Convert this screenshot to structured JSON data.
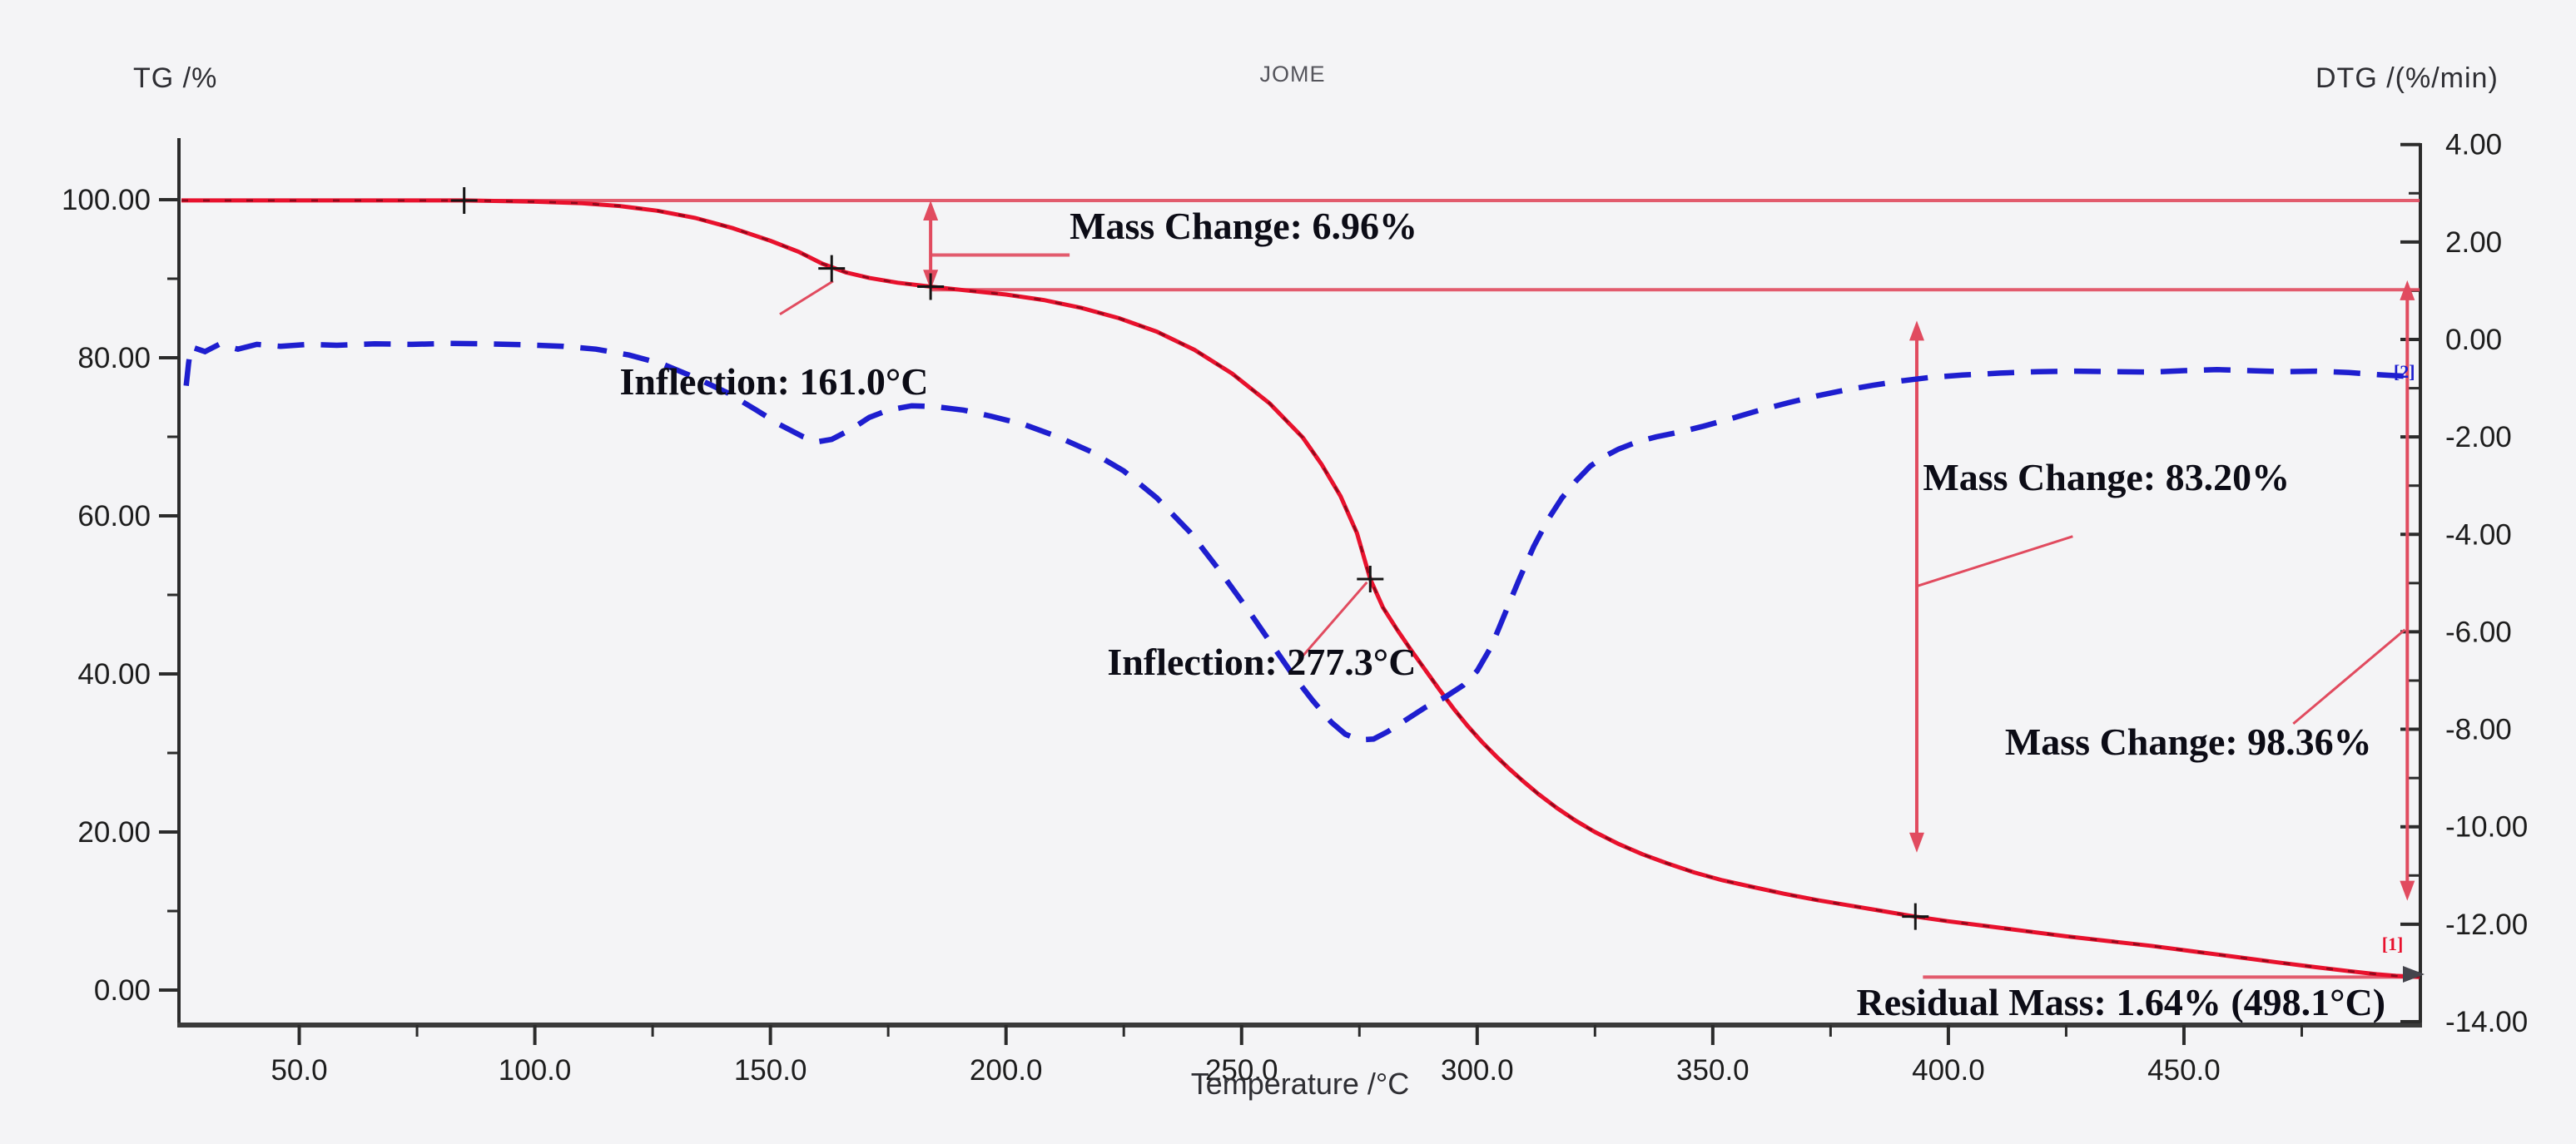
{
  "header": {
    "left_axis_label": "TG /%",
    "title": "JOME",
    "right_axis_label": "DTG /(%/min)"
  },
  "x_axis": {
    "label": "Temperature /°C",
    "min": 25,
    "max": 500,
    "major_tick_values": [
      50,
      100,
      150,
      200,
      250,
      300,
      350,
      400,
      450
    ],
    "major_tick_labels": [
      "50.0",
      "100.0",
      "150.0",
      "200.0",
      "250.0",
      "300.0",
      "350.0",
      "400.0",
      "450.0"
    ],
    "minor_tick_values": [
      75,
      125,
      175,
      225,
      275,
      325,
      375,
      425,
      475
    ]
  },
  "y_left_axis": {
    "label": "TG /%",
    "min": 0,
    "max": 100,
    "major_tick_values": [
      100,
      80,
      60,
      40,
      20,
      0
    ],
    "major_tick_labels": [
      "100.00",
      "80.00",
      "60.00",
      "40.00",
      "20.00",
      "0.00"
    ],
    "minor_tick_values": [
      90,
      70,
      50,
      30,
      10
    ]
  },
  "y_right_axis": {
    "label": "DTG /(%/min)",
    "min": -14,
    "max": 4,
    "major_tick_values": [
      4,
      2,
      0,
      -2,
      -4,
      -6,
      -8,
      -10,
      -12,
      -14
    ],
    "major_tick_labels": [
      "4.00",
      "2.00",
      "0.00",
      "-2.00",
      "-4.00",
      "-6.00",
      "-8.00",
      "-10.00",
      "-12.00",
      "-14.00"
    ],
    "minor_tick_values": [
      3,
      1,
      -1,
      -3,
      -5,
      -7,
      -9,
      -11,
      -13
    ]
  },
  "chart_data": {
    "type": "line",
    "title": "JOME",
    "xlabel": "Temperature /°C",
    "x_range": [
      25,
      500
    ],
    "y_left_range": [
      0,
      100
    ],
    "y_right_range": [
      -14,
      4
    ],
    "grid": false,
    "legend": "none",
    "series": [
      {
        "name": "TG",
        "axis": "left",
        "units": "%",
        "color": "#e8112d",
        "style": "solid",
        "points": [
          [
            25,
            99.9
          ],
          [
            45,
            99.9
          ],
          [
            65,
            99.9
          ],
          [
            85,
            99.9
          ],
          [
            100,
            99.75
          ],
          [
            110,
            99.55
          ],
          [
            118,
            99.2
          ],
          [
            126,
            98.6
          ],
          [
            134,
            97.7
          ],
          [
            142,
            96.4
          ],
          [
            150,
            94.8
          ],
          [
            156,
            93.4
          ],
          [
            161,
            91.9
          ],
          [
            166,
            90.8
          ],
          [
            171,
            90.1
          ],
          [
            177,
            89.5
          ],
          [
            184,
            89.0
          ],
          [
            192,
            88.5
          ],
          [
            200,
            88.0
          ],
          [
            208,
            87.3
          ],
          [
            216,
            86.3
          ],
          [
            224,
            85.0
          ],
          [
            232,
            83.3
          ],
          [
            240,
            81.0
          ],
          [
            248,
            78.0
          ],
          [
            256,
            74.2
          ],
          [
            263,
            69.9
          ],
          [
            267,
            66.5
          ],
          [
            271,
            62.5
          ],
          [
            274.5,
            57.8
          ],
          [
            277.3,
            52.0
          ],
          [
            280,
            48.4
          ],
          [
            283,
            45.6
          ],
          [
            286,
            43.0
          ],
          [
            289,
            40.5
          ],
          [
            292,
            38.0
          ],
          [
            295,
            35.6
          ],
          [
            298,
            33.4
          ],
          [
            301,
            31.4
          ],
          [
            304,
            29.6
          ],
          [
            307,
            27.9
          ],
          [
            310,
            26.3
          ],
          [
            313,
            24.8
          ],
          [
            317,
            23.0
          ],
          [
            321,
            21.4
          ],
          [
            325,
            20.0
          ],
          [
            330,
            18.5
          ],
          [
            335,
            17.2
          ],
          [
            340,
            16.1
          ],
          [
            346,
            14.9
          ],
          [
            352,
            13.9
          ],
          [
            358,
            13.1
          ],
          [
            365,
            12.2
          ],
          [
            372,
            11.4
          ],
          [
            379,
            10.7
          ],
          [
            386,
            10.0
          ],
          [
            393,
            9.3
          ],
          [
            400,
            8.7
          ],
          [
            408,
            8.1
          ],
          [
            416,
            7.5
          ],
          [
            425,
            6.8
          ],
          [
            434,
            6.2
          ],
          [
            443,
            5.6
          ],
          [
            452,
            4.9
          ],
          [
            461,
            4.2
          ],
          [
            470,
            3.5
          ],
          [
            478,
            2.9
          ],
          [
            485,
            2.4
          ],
          [
            491,
            2.0
          ],
          [
            495,
            1.8
          ],
          [
            498.1,
            1.7
          ],
          [
            500,
            1.65
          ]
        ]
      },
      {
        "name": "DTG",
        "axis": "right",
        "units": "%/min",
        "color": "#1e1ecf",
        "style": "dashed",
        "points": [
          [
            26,
            -0.95
          ],
          [
            26.5,
            -0.5
          ],
          [
            27,
            -0.15
          ],
          [
            30,
            -0.25
          ],
          [
            33,
            -0.1
          ],
          [
            37,
            -0.2
          ],
          [
            41,
            -0.1
          ],
          [
            46,
            -0.14
          ],
          [
            52,
            -0.1
          ],
          [
            58,
            -0.12
          ],
          [
            66,
            -0.09
          ],
          [
            74,
            -0.1
          ],
          [
            82,
            -0.08
          ],
          [
            90,
            -0.09
          ],
          [
            98,
            -0.11
          ],
          [
            106,
            -0.14
          ],
          [
            113,
            -0.2
          ],
          [
            120,
            -0.32
          ],
          [
            127,
            -0.5
          ],
          [
            134,
            -0.78
          ],
          [
            141,
            -1.1
          ],
          [
            147,
            -1.45
          ],
          [
            152,
            -1.75
          ],
          [
            157,
            -2.0
          ],
          [
            160,
            -2.1
          ],
          [
            163,
            -2.05
          ],
          [
            167,
            -1.85
          ],
          [
            171,
            -1.6
          ],
          [
            175,
            -1.45
          ],
          [
            180,
            -1.36
          ],
          [
            185,
            -1.38
          ],
          [
            191,
            -1.45
          ],
          [
            197,
            -1.58
          ],
          [
            204,
            -1.75
          ],
          [
            211,
            -2.0
          ],
          [
            218,
            -2.3
          ],
          [
            225,
            -2.7
          ],
          [
            232,
            -3.25
          ],
          [
            239,
            -3.95
          ],
          [
            245,
            -4.7
          ],
          [
            251,
            -5.5
          ],
          [
            256,
            -6.2
          ],
          [
            261,
            -6.9
          ],
          [
            265,
            -7.4
          ],
          [
            269,
            -7.85
          ],
          [
            272,
            -8.1
          ],
          [
            275,
            -8.22
          ],
          [
            278,
            -8.2
          ],
          [
            281,
            -8.05
          ],
          [
            285,
            -7.8
          ],
          [
            289,
            -7.55
          ],
          [
            293,
            -7.35
          ],
          [
            297,
            -7.1
          ],
          [
            300,
            -6.8
          ],
          [
            303,
            -6.3
          ],
          [
            306,
            -5.6
          ],
          [
            309,
            -4.9
          ],
          [
            312,
            -4.25
          ],
          [
            315,
            -3.7
          ],
          [
            318,
            -3.25
          ],
          [
            321,
            -2.9
          ],
          [
            324,
            -2.6
          ],
          [
            327,
            -2.4
          ],
          [
            330,
            -2.25
          ],
          [
            334,
            -2.1
          ],
          [
            338,
            -2.0
          ],
          [
            343,
            -1.9
          ],
          [
            348,
            -1.78
          ],
          [
            354,
            -1.62
          ],
          [
            360,
            -1.45
          ],
          [
            366,
            -1.3
          ],
          [
            372,
            -1.16
          ],
          [
            378,
            -1.04
          ],
          [
            384,
            -0.94
          ],
          [
            390,
            -0.85
          ],
          [
            396,
            -0.78
          ],
          [
            403,
            -0.73
          ],
          [
            411,
            -0.69
          ],
          [
            419,
            -0.66
          ],
          [
            427,
            -0.65
          ],
          [
            435,
            -0.66
          ],
          [
            443,
            -0.67
          ],
          [
            450,
            -0.64
          ],
          [
            457,
            -0.62
          ],
          [
            464,
            -0.64
          ],
          [
            471,
            -0.66
          ],
          [
            478,
            -0.65
          ],
          [
            485,
            -0.68
          ],
          [
            491,
            -0.72
          ],
          [
            496,
            -0.75
          ],
          [
            500,
            -0.77
          ]
        ]
      }
    ],
    "annotations": {
      "accent_color": "#e14b5f",
      "marker_color": "#151515",
      "texts": [
        {
          "name": "inflection-1",
          "text": "Inflection: 161.0°C",
          "T": 118,
          "TG": 79.5
        },
        {
          "name": "mass-change-1",
          "text": "Mass Change: 6.96%",
          "T": 213.5,
          "TG": 99.2
        },
        {
          "name": "inflection-2",
          "text": "Inflection: 277.3°C",
          "T": 221.5,
          "TG": 44.0
        },
        {
          "name": "mass-change-2",
          "text": "Mass Change: 83.20%",
          "T": 394.6,
          "TG": 67.4
        },
        {
          "name": "mass-change-3",
          "text": "Mass Change: 98.36%",
          "T": 412,
          "TG": 33.9
        },
        {
          "name": "residual-mass",
          "text": "Residual Mass: 1.64% (498.1°C)",
          "T": 380.5,
          "TG": 0.9
        }
      ],
      "level_lines": [
        {
          "TG": 99.9,
          "T1": 85,
          "T2": 500
        },
        {
          "TG": 93.0,
          "T1": 184,
          "T2": 213.5
        },
        {
          "TG": 88.6,
          "T1": 184,
          "T2": 500
        },
        {
          "TG": 1.64,
          "T1": 394.6,
          "T2": 500
        }
      ],
      "double_arrows": [
        {
          "T": 184,
          "TG1": 99.9,
          "TG2": 88.6
        },
        {
          "T": 393.3,
          "TG1": 84.7,
          "TG2": 17.4
        },
        {
          "T": 497.4,
          "TG1": 89.8,
          "TG2": 11.3
        }
      ],
      "pointer_lines": [
        {
          "T1": 152,
          "TG1": 85.5,
          "T2": 163.3,
          "TG2": 89.7
        },
        {
          "T1": 262,
          "TG1": 41.6,
          "T2": 276.6,
          "TG2": 51.6
        },
        {
          "T1": 393.3,
          "TG1": 51.1,
          "T2": 426.4,
          "TG2": 57.4
        },
        {
          "T1": 473.2,
          "TG1": 33.7,
          "T2": 496.9,
          "TG2": 45.6
        }
      ],
      "curve_markers": [
        [
          85,
          99.9
        ],
        [
          163,
          91.3
        ],
        [
          184,
          89.0
        ],
        [
          277.3,
          52.0
        ],
        [
          393,
          9.3
        ]
      ],
      "end_tags": [
        {
          "text": "[1]",
          "T": 492,
          "TG": 7.2,
          "color": "#e8112d"
        },
        {
          "text": "[2]",
          "T": 494.5,
          "DTG": -0.45,
          "color": "#1e1ecf"
        }
      ]
    }
  }
}
